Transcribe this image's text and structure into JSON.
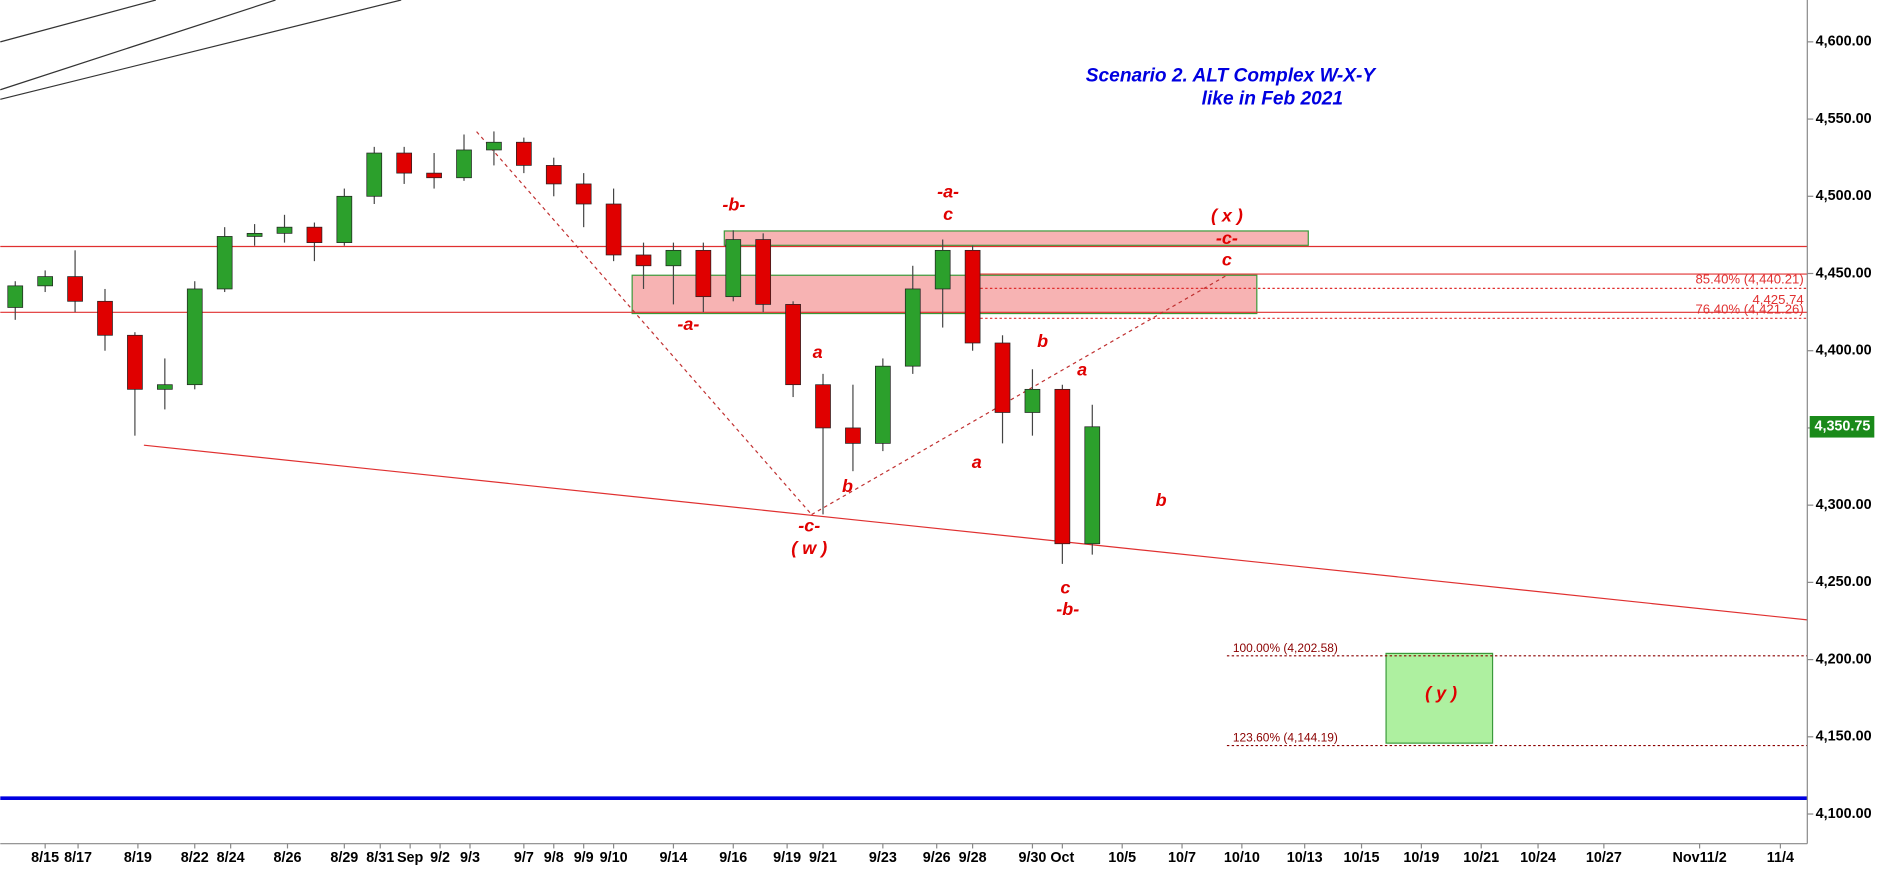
{
  "chart_data": {
    "type": "candlestick",
    "up_color": "#2ca02c",
    "down_color": "#e00000",
    "x": [
      -1,
      0,
      1,
      2,
      3,
      4,
      5,
      6,
      7,
      8,
      9,
      10,
      11,
      12,
      13,
      14,
      15,
      16,
      17,
      18,
      19,
      20,
      21,
      22,
      23,
      24,
      25,
      26,
      27,
      28,
      29,
      30,
      31,
      32,
      33,
      34,
      35
    ],
    "open": [
      4428,
      4442,
      4448,
      4432,
      4410,
      4375,
      4378,
      4440,
      4474,
      4476,
      4480,
      4470,
      4500,
      4528,
      4515,
      4512,
      4530,
      4535,
      4520,
      4508,
      4495,
      4462,
      4455,
      4465,
      4435,
      4472,
      4430,
      4378,
      4350,
      4340,
      4390,
      4440,
      4465,
      4405,
      4360,
      4375,
      4275
    ],
    "high": [
      4445,
      4452,
      4465,
      4440,
      4412,
      4395,
      4445,
      4480,
      4482,
      4488,
      4483,
      4505,
      4532,
      4532,
      4528,
      4540,
      4542,
      4538,
      4525,
      4515,
      4505,
      4470,
      4470,
      4470,
      4478,
      4476,
      4432,
      4385,
      4378,
      4395,
      4455,
      4472,
      4468,
      4410,
      4388,
      4378,
      4365
    ],
    "low": [
      4420,
      4438,
      4425,
      4400,
      4345,
      4362,
      4375,
      4438,
      4468,
      4470,
      4458,
      4468,
      4495,
      4508,
      4505,
      4510,
      4520,
      4515,
      4500,
      4480,
      4458,
      4440,
      4430,
      4425,
      4432,
      4425,
      4370,
      4294,
      4322,
      4335,
      4385,
      4415,
      4400,
      4340,
      4345,
      4262,
      4268
    ],
    "close": [
      4442,
      4448,
      4432,
      4410,
      4375,
      4378,
      4440,
      4474,
      4476,
      4480,
      4470,
      4500,
      4528,
      4515,
      4512,
      4530,
      4535,
      4520,
      4508,
      4495,
      4462,
      4455,
      4465,
      4435,
      4472,
      4430,
      4378,
      4350,
      4340,
      4390,
      4440,
      4465,
      4405,
      4360,
      4375,
      4275,
      4350.75
    ],
    "xlim": [
      -1.5,
      58.9
    ],
    "ylim": [
      4080.8,
      4627.1
    ],
    "xticks": [
      {
        "value": 0,
        "label": "8/15"
      },
      {
        "value": 1.1,
        "label": "8/17"
      },
      {
        "value": 3.1,
        "label": "8/19"
      },
      {
        "value": 5,
        "label": "8/22"
      },
      {
        "value": 6.2,
        "label": "8/24"
      },
      {
        "value": 8.1,
        "label": "8/26"
      },
      {
        "value": 10,
        "label": "8/29"
      },
      {
        "value": 11.2,
        "label": "8/31"
      },
      {
        "value": 12.2,
        "label": "Sep"
      },
      {
        "value": 13.2,
        "label": "9/2"
      },
      {
        "value": 14.2,
        "label": "9/3"
      },
      {
        "value": 16,
        "label": "9/7"
      },
      {
        "value": 17,
        "label": "9/8"
      },
      {
        "value": 18,
        "label": "9/9"
      },
      {
        "value": 19,
        "label": "9/10"
      },
      {
        "value": 21,
        "label": "9/14"
      },
      {
        "value": 23,
        "label": "9/16"
      },
      {
        "value": 24.8,
        "label": "9/19"
      },
      {
        "value": 26,
        "label": "9/21"
      },
      {
        "value": 28,
        "label": "9/23"
      },
      {
        "value": 29.8,
        "label": "9/26"
      },
      {
        "value": 31,
        "label": "9/28"
      },
      {
        "value": 33,
        "label": "9/30"
      },
      {
        "value": 34,
        "label": "Oct"
      },
      {
        "value": 36,
        "label": "10/5"
      },
      {
        "value": 38,
        "label": "10/7"
      },
      {
        "value": 40,
        "label": "10/10"
      },
      {
        "value": 42.1,
        "label": "10/13"
      },
      {
        "value": 44,
        "label": "10/15"
      },
      {
        "value": 46,
        "label": "10/19"
      },
      {
        "value": 48,
        "label": "10/21"
      },
      {
        "value": 49.9,
        "label": "10/24"
      },
      {
        "value": 52.1,
        "label": "10/27"
      },
      {
        "value": 55.3,
        "label": "Nov11/2"
      },
      {
        "value": 58,
        "label": "11/4"
      }
    ],
    "yticks": [
      {
        "value": 4100,
        "label": "4,100.00"
      },
      {
        "value": 4150,
        "label": "4,150.00"
      },
      {
        "value": 4200,
        "label": "4,200.00"
      },
      {
        "value": 4250,
        "label": "4,250.00"
      },
      {
        "value": 4300,
        "label": "4,300.00"
      },
      {
        "value": 4350,
        "label": "4,350.00"
      },
      {
        "value": 4400,
        "label": "4,400.00"
      },
      {
        "value": 4450,
        "label": "4,450.00"
      },
      {
        "value": 4500,
        "label": "4,500.00"
      },
      {
        "value": 4550,
        "label": "4,550.00"
      },
      {
        "value": 4600,
        "label": "4,600.00"
      }
    ],
    "last_price": {
      "value": 4350.75,
      "label": "4,350.75"
    },
    "last_price_color": "#1a8a1a",
    "annotations": [
      "Scenario 2. ALT Complex W-X-Y",
      "like in Feb 2021",
      "-b-",
      "-a-",
      "c",
      "( x )",
      "-c-",
      "c",
      "85.40% (4,440.21)",
      "4,425.74",
      "76.40% (4,421.26)",
      "-a-",
      "a",
      "b",
      "a",
      "a",
      "b",
      "b",
      "-c-",
      "( w )",
      "c",
      "-b-",
      "100.00% (4,202.58)",
      "( y )",
      "123.60% (4,144.19)"
    ]
  }
}
